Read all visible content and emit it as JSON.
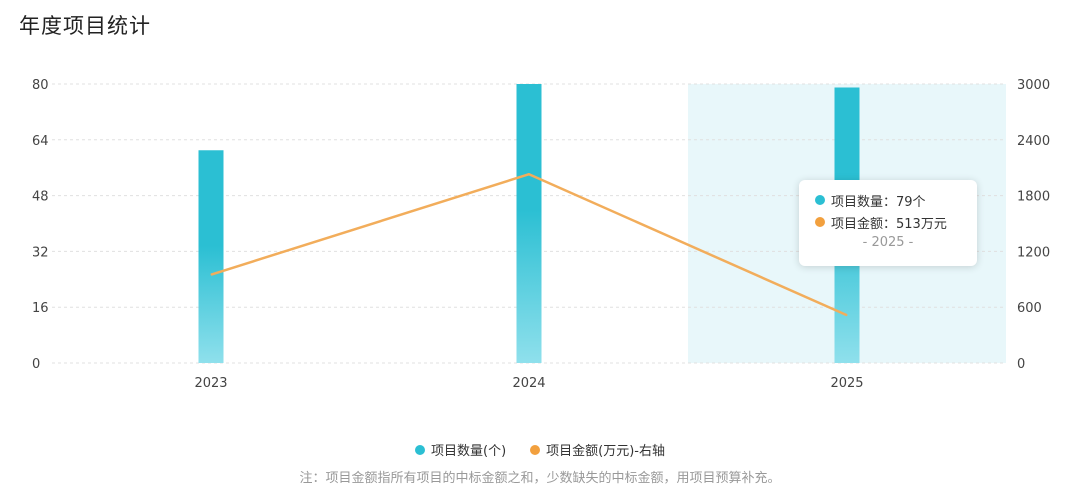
{
  "page": {
    "title": "年度项目统计"
  },
  "chart_data": {
    "type": "bar",
    "categories": [
      "2023",
      "2024",
      "2025"
    ],
    "series": [
      {
        "name": "项目数量(个)",
        "kind": "bar",
        "axis": "left",
        "values": [
          61,
          80,
          79
        ],
        "color": "#2bbfd3",
        "color_light": "#8fe0ec"
      },
      {
        "name": "项目金额(万元)-右轴",
        "kind": "line",
        "axis": "right",
        "values": [
          950,
          2030,
          513
        ],
        "color": "#f2ad5b"
      }
    ],
    "left_axis": {
      "ticks": [
        "0",
        "16",
        "32",
        "48",
        "64",
        "80"
      ],
      "min": 0,
      "max": 80
    },
    "right_axis": {
      "ticks": [
        "0",
        "600",
        "1200",
        "1800",
        "2400",
        "3000"
      ],
      "min": 0,
      "max": 3000
    },
    "highlight_category": "2025",
    "highlight_color": "#e8f7fa",
    "grid": true,
    "legend_position": "bottom"
  },
  "tooltip": {
    "row1": "项目数量：79个",
    "row2": "项目金额：513万元",
    "footer": "- 2025 -",
    "dot1_color": "#2bbfd3",
    "dot2_color": "#f2a03e"
  },
  "legend": {
    "items": [
      {
        "label": "项目数量(个)",
        "color": "#2bbfd3"
      },
      {
        "label": "项目金额(万元)-右轴",
        "color": "#f2a03e"
      }
    ]
  },
  "note": "注：项目金额指所有项目的中标金额之和，少数缺失的中标金额，用项目预算补充。"
}
